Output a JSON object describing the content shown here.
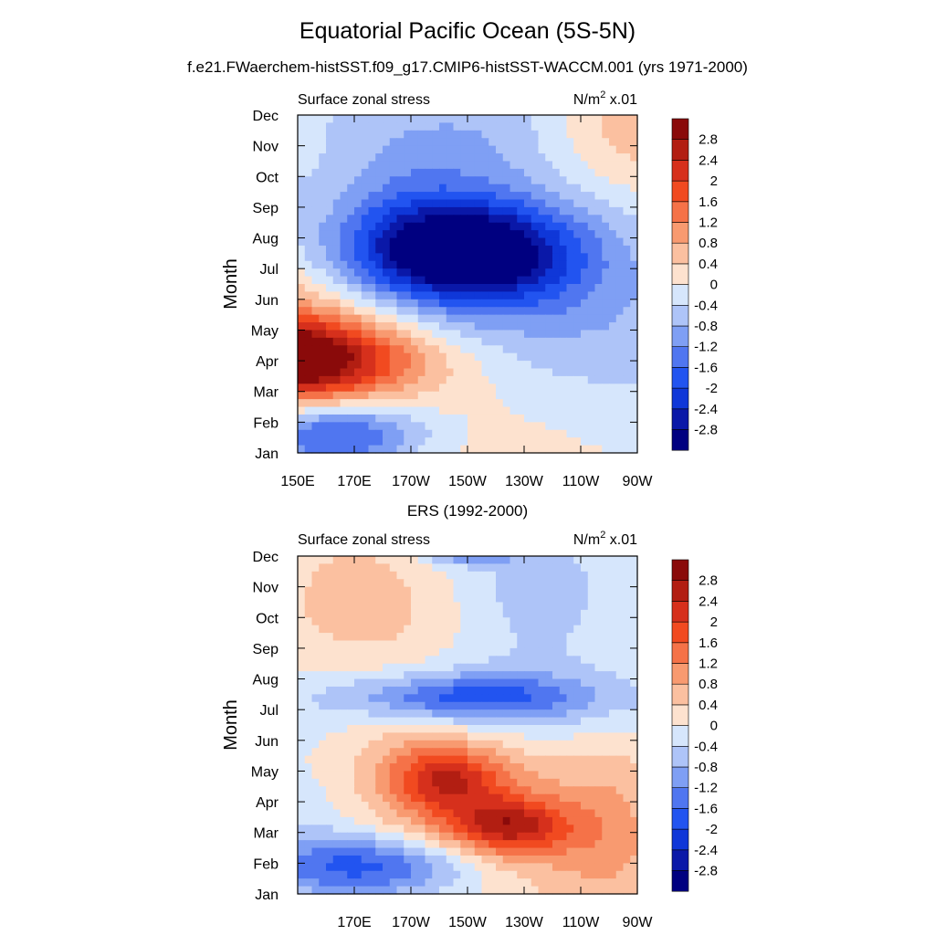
{
  "figure": {
    "title": "Equatorial Pacific Ocean (5S-5N)",
    "subtitle": "f.e21.FWaerchem-histSST.f09_g17.CMIP6-histSST-WACCM.001 (yrs 1971-2000)"
  },
  "chart_data": [
    {
      "type": "heatmap",
      "title": "",
      "left_string": "Surface zonal stress",
      "right_string_base": "N/m",
      "right_string_sup": "2",
      "right_string_tail": " x.01",
      "xlabel": "",
      "ylabel": "Month",
      "x_tick_labels": [
        "150E",
        "170E",
        "170W",
        "150W",
        "130W",
        "110W",
        "90W"
      ],
      "y_tick_labels": [
        "Jan",
        "Feb",
        "Mar",
        "Apr",
        "May",
        "Jun",
        "Jul",
        "Aug",
        "Sep",
        "Oct",
        "Nov",
        "Dec"
      ],
      "x_range_deg_east": [
        150,
        270
      ],
      "colorbar_levels": [
        "-2.8",
        "-2.4",
        "-2",
        "-1.6",
        "-1.2",
        "-0.8",
        "-0.4",
        "0",
        "0.4",
        "0.8",
        "1.2",
        "1.6",
        "2",
        "2.4",
        "2.8"
      ],
      "features": [
        {
          "lon": 142,
          "month": 3,
          "value": 3.0,
          "sx": 30,
          "sy": 0.9
        },
        {
          "lon": 140,
          "month": 3.3,
          "value": 1.6,
          "sx": 55,
          "sy": 2.4,
          "angle": -0.03
        },
        {
          "lon": 208,
          "month": 6.5,
          "value": -2.9,
          "sx": 26,
          "sy": 1.1
        },
        {
          "lon": 200,
          "month": 7,
          "value": -1.4,
          "sx": 60,
          "sy": 2.6,
          "angle": -0.03
        },
        {
          "lon": 165,
          "month": 0.6,
          "value": -1.8,
          "sx": 22,
          "sy": 0.8
        },
        {
          "lon": 160,
          "month": 1,
          "value": -0.9,
          "sx": 40,
          "sy": 1.4
        },
        {
          "lon": 158,
          "month": 9,
          "value": 0.6,
          "sx": 16,
          "sy": 1.6
        },
        {
          "lon": 265,
          "month": 10.8,
          "value": 0.9,
          "sx": 22,
          "sy": 1.6
        },
        {
          "lon": 230,
          "month": 11,
          "value": -0.5,
          "sx": 30,
          "sy": 1.3
        }
      ]
    },
    {
      "type": "heatmap",
      "title": "ERS (1992-2000)",
      "left_string": "Surface zonal stress",
      "right_string_base": "N/m",
      "right_string_sup": "2",
      "right_string_tail": " x.01",
      "xlabel": "",
      "ylabel": "Month",
      "x_tick_labels": [
        "170E",
        "170W",
        "150W",
        "130W",
        "110W",
        "90W"
      ],
      "x_tick_lons": [
        170,
        190,
        210,
        230,
        250,
        270
      ],
      "y_tick_labels": [
        "Jan",
        "Feb",
        "Mar",
        "Apr",
        "May",
        "Jun",
        "Jul",
        "Aug",
        "Sep",
        "Oct",
        "Nov",
        "Dec"
      ],
      "x_range_deg_east": [
        150,
        270
      ],
      "colorbar_levels": [
        "-2.8",
        "-2.4",
        "-2",
        "-1.6",
        "-1.2",
        "-0.8",
        "-0.4",
        "0",
        "0.4",
        "0.8",
        "1.2",
        "1.6",
        "2",
        "2.4",
        "2.8"
      ],
      "features": [
        {
          "lon": 210,
          "month": 3,
          "value": 1.4,
          "sx": 35,
          "sy": 1.6,
          "angle": -0.028
        },
        {
          "lon": 225,
          "month": 2.2,
          "value": 1.6,
          "sx": 14,
          "sy": 0.6
        },
        {
          "lon": 203,
          "month": 3.8,
          "value": 1.3,
          "sx": 12,
          "sy": 0.7
        },
        {
          "lon": 175,
          "month": 0.9,
          "value": -1.7,
          "sx": 28,
          "sy": 0.7
        },
        {
          "lon": 210,
          "month": 6.4,
          "value": -1.4,
          "sx": 30,
          "sy": 0.5
        },
        {
          "lon": 220,
          "month": 6.3,
          "value": -0.6,
          "sx": 50,
          "sy": 1.0
        },
        {
          "lon": 210,
          "month": 11.4,
          "value": -2.0,
          "sx": 12,
          "sy": 0.4
        },
        {
          "lon": 235,
          "month": 9.8,
          "value": -0.6,
          "sx": 20,
          "sy": 1.6
        },
        {
          "lon": 172,
          "month": 9.3,
          "value": 0.6,
          "sx": 24,
          "sy": 2.0
        },
        {
          "lon": 262,
          "month": 2.5,
          "value": 0.6,
          "sx": 14,
          "sy": 2.2
        },
        {
          "lon": 160,
          "month": 4,
          "value": -0.4,
          "sx": 15,
          "sy": 2.5
        }
      ]
    }
  ],
  "colors": {
    "negative": [
      "#000080",
      "#0a18a8",
      "#0f37d8",
      "#2254f0",
      "#5076f0",
      "#7f9ff4",
      "#aec4f8",
      "#d6e6fc"
    ],
    "positive": [
      "#fde2cf",
      "#fbc0a0",
      "#f89a70",
      "#f57248",
      "#f14a20",
      "#d6301c",
      "#b21e12",
      "#8a0a0a"
    ]
  }
}
